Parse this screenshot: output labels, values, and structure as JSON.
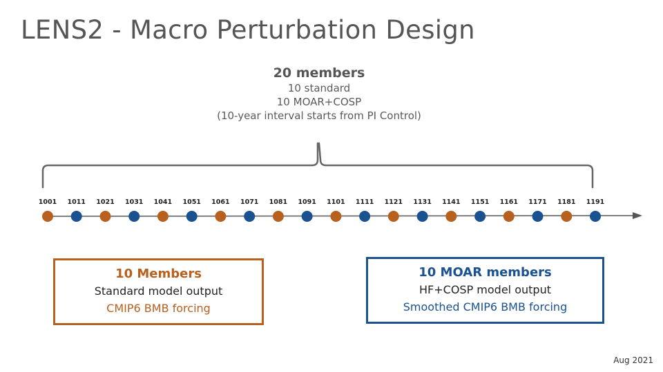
{
  "title": "LENS2 - Macro Perturbation Design",
  "summary": {
    "heading": "20 members",
    "lines": [
      "10 standard",
      "10 MOAR+COSP",
      "(10-year interval starts from PI Control)"
    ]
  },
  "timeline": {
    "members": [
      {
        "label": "1001",
        "group": "standard"
      },
      {
        "label": "1011",
        "group": "moar"
      },
      {
        "label": "1021",
        "group": "standard"
      },
      {
        "label": "1031",
        "group": "moar"
      },
      {
        "label": "1041",
        "group": "standard"
      },
      {
        "label": "1051",
        "group": "moar"
      },
      {
        "label": "1061",
        "group": "standard"
      },
      {
        "label": "1071",
        "group": "moar"
      },
      {
        "label": "1081",
        "group": "standard"
      },
      {
        "label": "1091",
        "group": "moar"
      },
      {
        "label": "1101",
        "group": "standard"
      },
      {
        "label": "1111",
        "group": "moar"
      },
      {
        "label": "1121",
        "group": "standard"
      },
      {
        "label": "1131",
        "group": "moar"
      },
      {
        "label": "1141",
        "group": "standard"
      },
      {
        "label": "1151",
        "group": "moar"
      },
      {
        "label": "1161",
        "group": "standard"
      },
      {
        "label": "1171",
        "group": "moar"
      },
      {
        "label": "1181",
        "group": "standard"
      },
      {
        "label": "1191",
        "group": "moar"
      }
    ],
    "colors": {
      "standard": "#b8601d",
      "moar": "#1a5190",
      "axis": "#555555",
      "brace": "#666666"
    }
  },
  "boxes": {
    "standard": {
      "title": "10 Members",
      "line1": "Standard model output",
      "line2": "CMIP6 BMB forcing"
    },
    "moar": {
      "title": "10 MOAR members",
      "line1": "HF+COSP model output",
      "line2": "Smoothed CMIP6 BMB forcing"
    }
  },
  "date": "Aug 2021"
}
